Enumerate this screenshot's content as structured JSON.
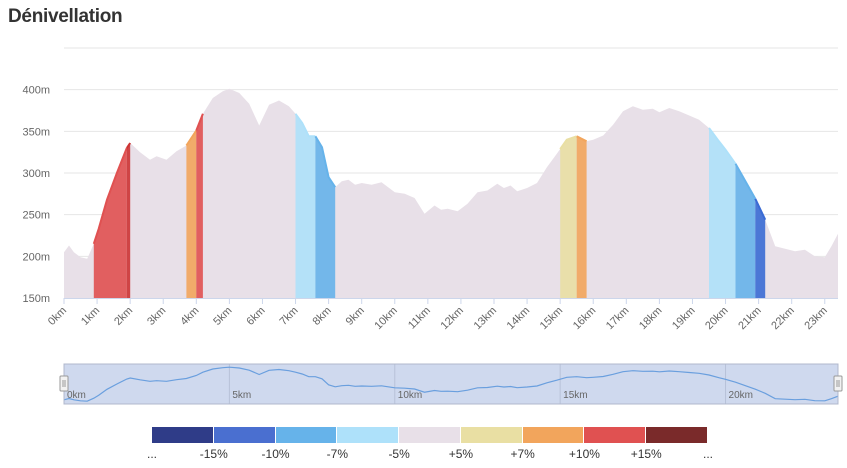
{
  "title": "Dénivellation",
  "chart_data": {
    "type": "area",
    "title": "Dénivellation",
    "xlabel": "",
    "ylabel": "",
    "x_unit": "km",
    "y_unit": "m",
    "xlim": [
      0,
      23.4
    ],
    "ylim": [
      150,
      450
    ],
    "y_ticks": [
      "150m",
      "200m",
      "250m",
      "300m",
      "350m",
      "400m"
    ],
    "y_tick_values": [
      150,
      200,
      250,
      300,
      350,
      400
    ],
    "x_ticks": [
      "0km",
      "1km",
      "2km",
      "3km",
      "4km",
      "5km",
      "6km",
      "7km",
      "8km",
      "9km",
      "10km",
      "11km",
      "12km",
      "13km",
      "14km",
      "15km",
      "16km",
      "17km",
      "18km",
      "19km",
      "20km",
      "21km",
      "22km",
      "23km"
    ],
    "x_tick_values": [
      0,
      1,
      2,
      3,
      4,
      5,
      6,
      7,
      8,
      9,
      10,
      11,
      12,
      13,
      14,
      15,
      16,
      17,
      18,
      19,
      20,
      21,
      22,
      23
    ],
    "grid": true,
    "legend_position": "bottom",
    "series": [
      {
        "x": [
          0,
          0.15,
          0.3,
          0.5,
          0.7,
          0.9,
          1.05,
          1.3,
          1.6,
          1.9,
          2.0,
          2.3,
          2.6,
          2.8,
          3.1,
          3.4,
          3.7,
          4.0,
          4.2,
          4.5,
          4.8,
          5.0,
          5.3,
          5.6,
          5.9,
          6.2,
          6.5,
          6.8,
          7.0,
          7.2,
          7.4,
          7.6,
          7.8,
          8.0,
          8.2,
          8.4,
          8.6,
          8.8,
          9.0,
          9.3,
          9.6,
          10.0,
          10.3,
          10.6,
          10.9,
          11.2,
          11.4,
          11.6,
          11.9,
          12.2,
          12.5,
          12.8,
          13.1,
          13.3,
          13.5,
          13.7,
          14.0,
          14.3,
          14.6,
          14.9,
          15.2,
          15.5,
          15.8,
          16.0,
          16.3,
          16.6,
          16.9,
          17.2,
          17.5,
          17.8,
          18.0,
          18.3,
          18.6,
          18.9,
          19.2,
          19.5,
          19.8,
          20.0,
          20.3,
          20.6,
          20.9,
          21.2,
          21.5,
          21.8,
          22.1,
          22.4,
          22.7,
          23.0,
          23.2,
          23.4
        ],
        "y": [
          205,
          213,
          205,
          199,
          197,
          215,
          233,
          268,
          300,
          330,
          336,
          325,
          316,
          320,
          316,
          326,
          333,
          351,
          371,
          390,
          398,
          401,
          396,
          383,
          357,
          382,
          387,
          380,
          371,
          360,
          344,
          344,
          331,
          295,
          283,
          290,
          292,
          286,
          288,
          286,
          289,
          277,
          275,
          270,
          251,
          261,
          256,
          257,
          254,
          263,
          277,
          279,
          287,
          282,
          285,
          278,
          282,
          288,
          307,
          323,
          340,
          344,
          338,
          340,
          345,
          358,
          374,
          380,
          376,
          377,
          373,
          378,
          374,
          369,
          364,
          354,
          338,
          328,
          311,
          290,
          269,
          244,
          212,
          209,
          206,
          208,
          200,
          199,
          212,
          227
        ]
      }
    ],
    "gradient_segments": [
      {
        "from": 0.9,
        "to": 1.9,
        "class": "+10%"
      },
      {
        "from": 1.9,
        "to": 2.0,
        "class": "+15%"
      },
      {
        "from": 3.7,
        "to": 4.0,
        "class": "+7%"
      },
      {
        "from": 4.0,
        "to": 4.2,
        "class": "+10%"
      },
      {
        "from": 7.0,
        "to": 7.6,
        "class": "-5%"
      },
      {
        "from": 7.6,
        "to": 8.2,
        "class": "-7%"
      },
      {
        "from": 15.0,
        "to": 15.5,
        "class": "+5%"
      },
      {
        "from": 15.5,
        "to": 15.8,
        "class": "+7%"
      },
      {
        "from": 19.5,
        "to": 20.3,
        "class": "-5%"
      },
      {
        "from": 20.3,
        "to": 20.9,
        "class": "-7%"
      },
      {
        "from": 20.9,
        "to": 21.2,
        "class": "-10%"
      }
    ],
    "navigator": {
      "labels": [
        "0km",
        "5km",
        "10km",
        "15km",
        "20km"
      ],
      "label_values": [
        0,
        5,
        10,
        15,
        20
      ]
    },
    "legend": [
      {
        "color": "#2f3c88",
        "label": "..."
      },
      {
        "color": "#4a6fd0",
        "label": "-15%"
      },
      {
        "color": "#66b3ea",
        "label": "-10%"
      },
      {
        "color": "#aee1fa",
        "label": "-7%"
      },
      {
        "color": "#e8e0e8",
        "label": "-5%"
      },
      {
        "color": "#e9dfa3",
        "label": "+5%"
      },
      {
        "color": "#f2a55c",
        "label": "+7%"
      },
      {
        "color": "#e05151",
        "label": "+10%"
      },
      {
        "color": "#7a2a2a",
        "label": "+15%"
      },
      {
        "color": "",
        "label": "..."
      }
    ],
    "colors": {
      "base_fill": "#e8e0e8",
      "grid": "#e6e6e6",
      "navigator_fill": "#cfd9ee",
      "navigator_line": "#6a9fde",
      "+5%": "#e9dfa3",
      "+7%": "#f2a55c",
      "+10%": "#e05151",
      "+15%": "#cc3333",
      "-5%": "#aee1fa",
      "-7%": "#66b3ea",
      "-10%": "#3a6bd4"
    }
  }
}
